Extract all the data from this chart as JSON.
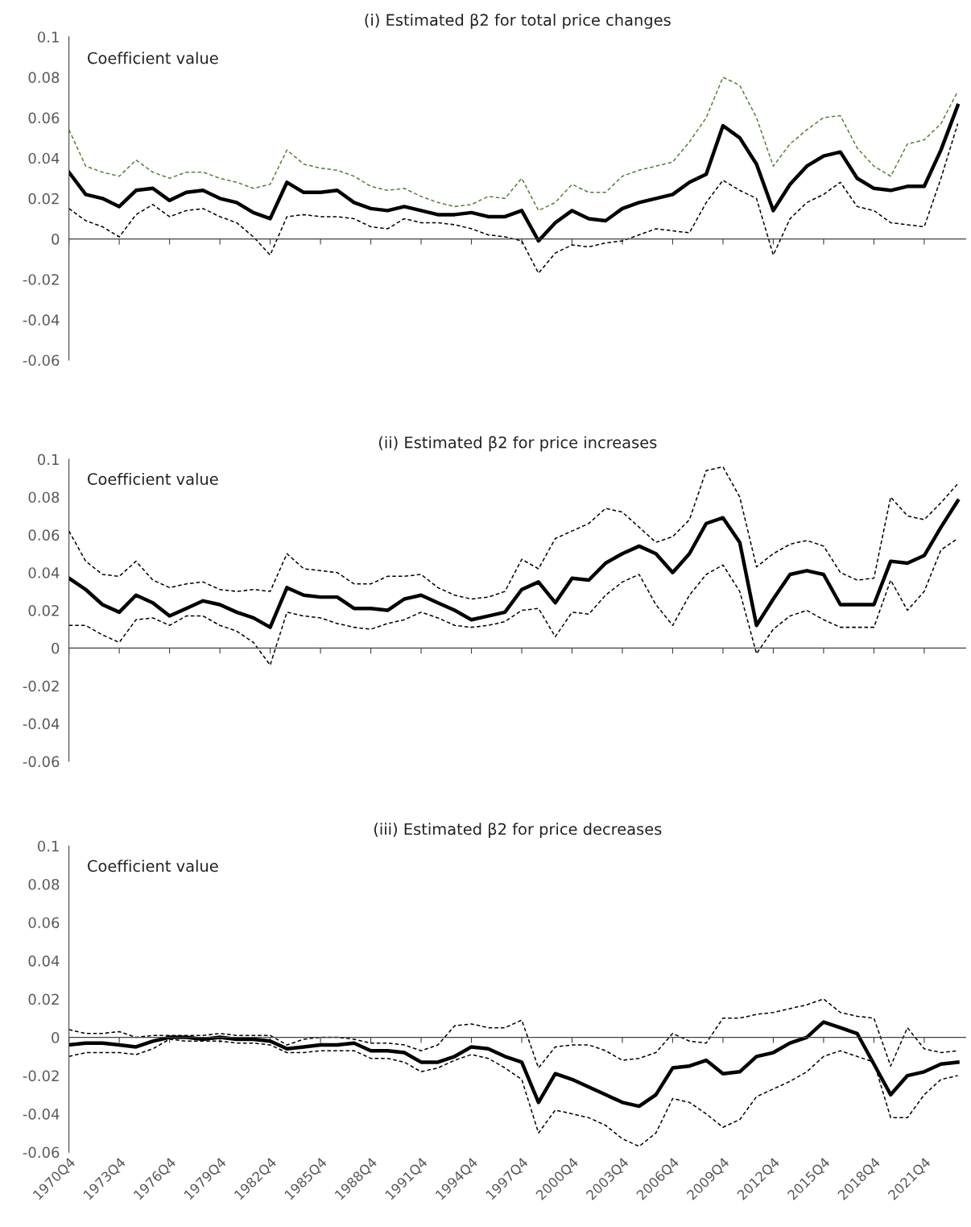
{
  "chart_data": [
    {
      "type": "line",
      "title": "(i) Estimated β2 for total price changes",
      "annotations": [
        "Coefficient value"
      ],
      "categories": [
        null,
        null,
        null,
        null,
        null,
        null,
        null,
        null,
        null,
        null,
        null,
        null,
        null,
        null,
        null,
        null,
        null,
        null,
        null,
        null,
        null,
        null,
        null,
        null,
        null,
        null,
        null,
        null,
        null,
        null,
        null,
        null,
        null,
        null,
        null,
        null,
        null,
        null,
        null,
        null,
        null,
        null,
        null,
        null,
        null,
        null,
        null,
        null,
        null,
        null,
        null,
        null,
        null,
        null
      ],
      "series": [
        {
          "color": "#000000",
          "line_style": "solid",
          "values": [
            0.033,
            0.022,
            0.02,
            0.016,
            0.024,
            0.025,
            0.019,
            0.023,
            0.024,
            0.02,
            0.018,
            0.013,
            0.01,
            0.028,
            0.023,
            0.023,
            0.024,
            0.018,
            0.015,
            0.014,
            0.016,
            0.014,
            0.012,
            0.012,
            0.013,
            0.011,
            0.011,
            0.014,
            -0.001,
            0.008,
            0.014,
            0.01,
            0.009,
            0.015,
            0.018,
            0.02,
            0.022,
            0.028,
            0.032,
            0.056,
            0.05,
            0.037,
            0.014,
            0.027,
            0.036,
            0.041,
            0.043,
            0.03,
            0.025,
            0.024,
            0.026,
            0.026,
            0.044,
            0.066
          ]
        },
        {
          "color": "#548235",
          "line_style": "dashed",
          "values": [
            0.054,
            0.036,
            0.033,
            0.031,
            0.039,
            0.033,
            0.03,
            0.033,
            0.033,
            0.03,
            0.028,
            0.025,
            0.027,
            0.044,
            0.037,
            0.035,
            0.034,
            0.031,
            0.026,
            0.024,
            0.025,
            0.021,
            0.018,
            0.016,
            0.017,
            0.021,
            0.02,
            0.03,
            0.014,
            0.018,
            0.027,
            0.023,
            0.023,
            0.031,
            0.034,
            0.036,
            0.038,
            0.048,
            0.06,
            0.08,
            0.076,
            0.06,
            0.036,
            0.047,
            0.054,
            0.06,
            0.061,
            0.045,
            0.036,
            0.031,
            0.047,
            0.049,
            0.057,
            0.073
          ]
        },
        {
          "color": "#000000",
          "line_style": "dashed",
          "values": [
            0.015,
            0.009,
            0.006,
            0.001,
            0.012,
            0.017,
            0.011,
            0.014,
            0.015,
            0.011,
            0.008,
            0.001,
            -0.008,
            0.011,
            0.012,
            0.011,
            0.011,
            0.01,
            0.006,
            0.005,
            0.01,
            0.008,
            0.008,
            0.007,
            0.005,
            0.002,
            0.001,
            -0.001,
            -0.017,
            -0.007,
            -0.003,
            -0.004,
            -0.002,
            -0.001,
            0.002,
            0.005,
            0.004,
            0.003,
            0.018,
            0.029,
            0.024,
            0.02,
            -0.008,
            0.01,
            0.018,
            0.022,
            0.028,
            0.016,
            0.014,
            0.008,
            0.007,
            0.006,
            0.03,
            0.057
          ]
        }
      ],
      "ylim": [
        -0.06,
        0.1
      ],
      "yticks": [
        -0.06,
        -0.04,
        -0.02,
        0,
        0.02,
        0.04,
        0.06,
        0.08,
        0.1
      ],
      "tick_labels": "y",
      "grid": false,
      "marker": "none",
      "ref_lines": [
        {
          "axis": "y",
          "value": 0,
          "color": "#404040"
        }
      ]
    },
    {
      "type": "line",
      "title": "(ii) Estimated β2 for price increases",
      "annotations": [
        "Coefficient value"
      ],
      "categories": [
        null,
        null,
        null,
        null,
        null,
        null,
        null,
        null,
        null,
        null,
        null,
        null,
        null,
        null,
        null,
        null,
        null,
        null,
        null,
        null,
        null,
        null,
        null,
        null,
        null,
        null,
        null,
        null,
        null,
        null,
        null,
        null,
        null,
        null,
        null,
        null,
        null,
        null,
        null,
        null,
        null,
        null,
        null,
        null,
        null,
        null,
        null,
        null,
        null,
        null,
        null,
        null,
        null,
        null
      ],
      "series": [
        {
          "color": "#000000",
          "line_style": "solid",
          "values": [
            0.037,
            0.031,
            0.023,
            0.019,
            0.028,
            0.024,
            0.017,
            0.021,
            0.025,
            0.023,
            0.019,
            0.016,
            0.011,
            0.032,
            0.028,
            0.027,
            0.027,
            0.021,
            0.021,
            0.02,
            0.026,
            0.028,
            0.024,
            0.02,
            0.015,
            0.017,
            0.019,
            0.031,
            0.035,
            0.024,
            0.037,
            0.036,
            0.045,
            0.05,
            0.054,
            0.05,
            0.04,
            0.05,
            0.066,
            0.069,
            0.056,
            0.012,
            0.026,
            0.039,
            0.041,
            0.039,
            0.023,
            0.023,
            0.023,
            0.046,
            0.045,
            0.049,
            0.064,
            0.078
          ]
        },
        {
          "color": "#000000",
          "line_style": "dashed",
          "values": [
            0.062,
            0.046,
            0.039,
            0.038,
            0.046,
            0.036,
            0.032,
            0.034,
            0.035,
            0.031,
            0.03,
            0.031,
            0.03,
            0.05,
            0.042,
            0.041,
            0.04,
            0.034,
            0.034,
            0.038,
            0.038,
            0.039,
            0.032,
            0.028,
            0.026,
            0.027,
            0.03,
            0.047,
            0.042,
            0.058,
            0.062,
            0.066,
            0.074,
            0.072,
            0.064,
            0.056,
            0.059,
            0.068,
            0.094,
            0.096,
            0.08,
            0.043,
            0.05,
            0.055,
            0.057,
            0.054,
            0.04,
            0.036,
            0.037,
            0.08,
            0.07,
            0.068,
            0.077,
            0.087
          ]
        },
        {
          "color": "#000000",
          "line_style": "dashed",
          "values": [
            0.012,
            0.012,
            0.007,
            0.003,
            0.015,
            0.016,
            0.012,
            0.017,
            0.017,
            0.012,
            0.009,
            0.003,
            -0.009,
            0.019,
            0.017,
            0.016,
            0.013,
            0.011,
            0.01,
            0.013,
            0.015,
            0.019,
            0.016,
            0.012,
            0.011,
            0.012,
            0.014,
            0.02,
            0.021,
            0.006,
            0.019,
            0.018,
            0.028,
            0.035,
            0.039,
            0.023,
            0.012,
            0.028,
            0.039,
            0.044,
            0.03,
            -0.003,
            0.01,
            0.017,
            0.02,
            0.015,
            0.011,
            0.011,
            0.011,
            0.036,
            0.02,
            0.03,
            0.052,
            0.058
          ]
        }
      ],
      "ylim": [
        -0.06,
        0.1
      ],
      "yticks": [
        -0.06,
        -0.04,
        -0.02,
        0,
        0.02,
        0.04,
        0.06,
        0.08,
        0.1
      ],
      "tick_labels": "y",
      "grid": false,
      "marker": "none",
      "ref_lines": [
        {
          "axis": "y",
          "value": 0,
          "color": "#404040"
        }
      ]
    },
    {
      "type": "line",
      "title": "(iii) Estimated β2 for price decreases",
      "annotations": [
        "Coefficient value"
      ],
      "categories": [
        "1970Q4",
        null,
        null,
        "1973Q4",
        null,
        null,
        "1976Q4",
        null,
        null,
        "1979Q4",
        null,
        null,
        "1982Q4",
        null,
        null,
        "1985Q4",
        null,
        null,
        "1988Q4",
        null,
        null,
        "1991Q4",
        null,
        null,
        "1994Q4",
        null,
        null,
        "1997Q4",
        null,
        null,
        "2000Q4",
        null,
        null,
        "2003Q4",
        null,
        null,
        "2006Q4",
        null,
        null,
        "2009Q4",
        null,
        null,
        "2012Q4",
        null,
        null,
        "2015Q4",
        null,
        null,
        "2018Q4",
        null,
        null,
        "2021Q4",
        null,
        null
      ],
      "series": [
        {
          "color": "#000000",
          "line_style": "solid",
          "values": [
            -0.004,
            -0.003,
            -0.003,
            -0.004,
            -0.005,
            -0.002,
            0.0,
            0.0,
            -0.001,
            0.0,
            -0.001,
            -0.001,
            -0.002,
            -0.006,
            -0.005,
            -0.004,
            -0.004,
            -0.003,
            -0.007,
            -0.007,
            -0.008,
            -0.013,
            -0.013,
            -0.01,
            -0.005,
            -0.006,
            -0.01,
            -0.013,
            -0.034,
            -0.019,
            -0.022,
            -0.026,
            -0.03,
            -0.034,
            -0.036,
            -0.03,
            -0.016,
            -0.015,
            -0.012,
            -0.019,
            -0.018,
            -0.01,
            -0.008,
            -0.003,
            0.0,
            0.008,
            0.005,
            0.002,
            -0.014,
            -0.03,
            -0.02,
            -0.018,
            -0.014,
            -0.013
          ]
        },
        {
          "color": "#000000",
          "line_style": "dashed",
          "values": [
            0.004,
            0.002,
            0.002,
            0.003,
            0.0,
            0.001,
            0.001,
            0.001,
            0.001,
            0.002,
            0.001,
            0.001,
            0.001,
            -0.004,
            -0.001,
            0.0,
            0.0,
            -0.001,
            -0.003,
            -0.003,
            -0.004,
            -0.007,
            -0.004,
            0.006,
            0.007,
            0.005,
            0.005,
            0.009,
            -0.016,
            -0.005,
            -0.004,
            -0.004,
            -0.007,
            -0.012,
            -0.011,
            -0.008,
            0.002,
            -0.002,
            -0.003,
            0.01,
            0.01,
            0.012,
            0.013,
            0.015,
            0.017,
            0.02,
            0.013,
            0.011,
            0.01,
            -0.015,
            0.005,
            -0.006,
            -0.008,
            -0.007
          ]
        },
        {
          "color": "#000000",
          "line_style": "dashed",
          "values": [
            -0.01,
            -0.008,
            -0.008,
            -0.008,
            -0.009,
            -0.006,
            -0.001,
            -0.002,
            -0.002,
            -0.002,
            -0.003,
            -0.003,
            -0.004,
            -0.008,
            -0.008,
            -0.007,
            -0.007,
            -0.007,
            -0.011,
            -0.011,
            -0.013,
            -0.018,
            -0.016,
            -0.012,
            -0.009,
            -0.011,
            -0.016,
            -0.022,
            -0.05,
            -0.038,
            -0.04,
            -0.042,
            -0.046,
            -0.053,
            -0.057,
            -0.05,
            -0.032,
            -0.034,
            -0.04,
            -0.047,
            -0.043,
            -0.031,
            -0.027,
            -0.023,
            -0.018,
            -0.01,
            -0.007,
            -0.01,
            -0.013,
            -0.042,
            -0.042,
            -0.03,
            -0.022,
            -0.02
          ]
        }
      ],
      "ylim": [
        -0.06,
        0.1
      ],
      "yticks": [
        -0.06,
        -0.04,
        -0.02,
        0,
        0.02,
        0.04,
        0.06,
        0.08,
        0.1
      ],
      "grid": false,
      "marker": "none",
      "ref_lines": [
        {
          "axis": "y",
          "value": 0,
          "color": "#404040"
        }
      ]
    }
  ]
}
